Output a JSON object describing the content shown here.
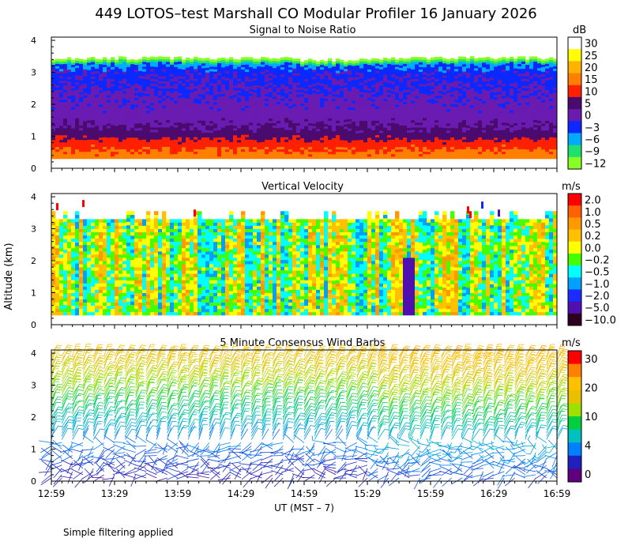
{
  "chart_data": {
    "title": "449 LOTOS–test Marshall CO Modular Profiler 16 January 2026",
    "x_ticks": [
      "12:59",
      "13:29",
      "13:59",
      "14:29",
      "14:59",
      "15:29",
      "15:59",
      "16:29",
      "16:59"
    ],
    "x_range_hours": [
      12.983,
      16.983
    ],
    "xlabel": "UT  (MST – 7)",
    "ylabel": "Altitude (km)",
    "y_ticks": [
      "0",
      "1",
      "2",
      "3",
      "4"
    ],
    "ylim_km": [
      0,
      4.1
    ],
    "panels": [
      {
        "type": "heatmap",
        "title": "Signal to Noise Ratio",
        "units": "dB",
        "data_height_km": [
          0.3,
          3.45
        ],
        "colorbar": {
          "labels": [
            "30",
            "25",
            "20",
            "15",
            "10",
            "5",
            "0",
            "−3",
            "−6",
            "−9",
            "−12"
          ],
          "colors": [
            "#ffffff",
            "#ffff00",
            "#ffb300",
            "#ff8000",
            "#ff2000",
            "#4b0a6e",
            "#6a1bb0",
            "#0a28ff",
            "#00aaff",
            "#20e070",
            "#88ff22"
          ]
        },
        "profile_km_db": [
          [
            0.3,
            18
          ],
          [
            0.6,
            15
          ],
          [
            0.9,
            10
          ],
          [
            1.2,
            6
          ],
          [
            1.7,
            2
          ],
          [
            2.4,
            0
          ],
          [
            3.0,
            -1
          ],
          [
            3.3,
            -4
          ],
          [
            3.4,
            -8
          ],
          [
            3.45,
            -12
          ]
        ]
      },
      {
        "type": "heatmap",
        "title": "Vertical Velocity",
        "units": "m/s",
        "data_height_km": [
          0.3,
          3.3
        ],
        "colorbar": {
          "labels": [
            "2.0",
            "1.0",
            "0.5",
            "0.2",
            "0.0",
            "−0.2",
            "−0.5",
            "−1.0",
            "−2.0",
            "−5.0",
            "−10.0"
          ],
          "colors": [
            "#ff0000",
            "#ff6000",
            "#ff9900",
            "#ffc000",
            "#ffff00",
            "#44ff00",
            "#00ffff",
            "#00a0ff",
            "#1c2cff",
            "#5010b0",
            "#300020"
          ]
        }
      },
      {
        "type": "wind_barbs",
        "title": "5 Minute Consensus Wind Barbs",
        "units": "m/s",
        "interval_minutes": 5,
        "data_height_km": [
          0.1,
          4.0
        ],
        "colorbar": {
          "labels": [
            "30",
            "20",
            "10",
            "4",
            "0"
          ],
          "colors": [
            "#ff0000",
            "#ff8000",
            "#ffc000",
            "#e8c000",
            "#a0e000",
            "#00d040",
            "#00c0c0",
            "#0080ff",
            "#2020c0",
            "#60007c"
          ]
        },
        "speed_profile_km_ms": [
          [
            0.1,
            3
          ],
          [
            0.5,
            4
          ],
          [
            1.0,
            6
          ],
          [
            1.5,
            9
          ],
          [
            2.0,
            12
          ],
          [
            2.5,
            15
          ],
          [
            3.0,
            18
          ],
          [
            3.5,
            21
          ],
          [
            4.0,
            24
          ]
        ]
      }
    ],
    "footnote": "Simple filtering applied"
  }
}
